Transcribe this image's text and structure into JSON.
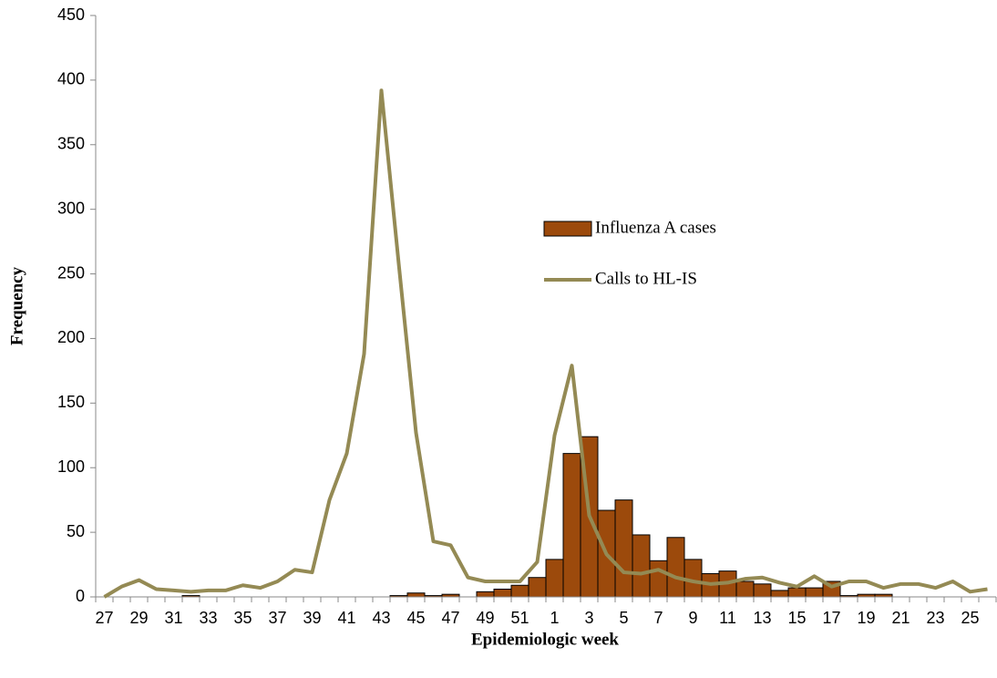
{
  "chart_data": {
    "type": "bar",
    "x_label": "Epidemiologic week",
    "y_label": "Frequency",
    "categories": [
      "27",
      null,
      "29",
      null,
      "31",
      null,
      "33",
      null,
      "35",
      null,
      "37",
      null,
      "39",
      null,
      "41",
      null,
      "43",
      null,
      "45",
      null,
      "47",
      null,
      "49",
      null,
      "51",
      null,
      "1",
      null,
      "3",
      null,
      "5",
      null,
      "7",
      null,
      "9",
      null,
      "11",
      null,
      "13",
      null,
      "15",
      null,
      "17",
      null,
      "19",
      null,
      "21",
      null,
      "23",
      null,
      "25",
      null
    ],
    "series": [
      {
        "name": "Influenza A cases",
        "type": "bar",
        "color": "#9c4a0c",
        "values": [
          0,
          0,
          0,
          0,
          0,
          1,
          0,
          0,
          0,
          0,
          0,
          0,
          0,
          0,
          0,
          0,
          0,
          1,
          3,
          1,
          2,
          0,
          4,
          6,
          9,
          15,
          29,
          111,
          124,
          67,
          75,
          48,
          28,
          46,
          29,
          18,
          20,
          12,
          10,
          5,
          7,
          7,
          12,
          1,
          2,
          2,
          0,
          0,
          0,
          0,
          0,
          0
        ]
      },
      {
        "name": "Calls to HL-IS",
        "type": "line",
        "color": "#948a54",
        "values": [
          0,
          8,
          13,
          6,
          5,
          4,
          5,
          5,
          9,
          7,
          12,
          21,
          19,
          75,
          111,
          188,
          392,
          258,
          127,
          43,
          40,
          15,
          12,
          12,
          12,
          27,
          125,
          179,
          63,
          33,
          19,
          18,
          21,
          15,
          12,
          10,
          11,
          14,
          15,
          11,
          8,
          16,
          8,
          12,
          12,
          7,
          10,
          10,
          7,
          12,
          4,
          6
        ]
      }
    ],
    "ylim": [
      0,
      450
    ],
    "yticks": [
      0,
      50,
      100,
      150,
      200,
      250,
      300,
      350,
      400,
      450
    ]
  }
}
